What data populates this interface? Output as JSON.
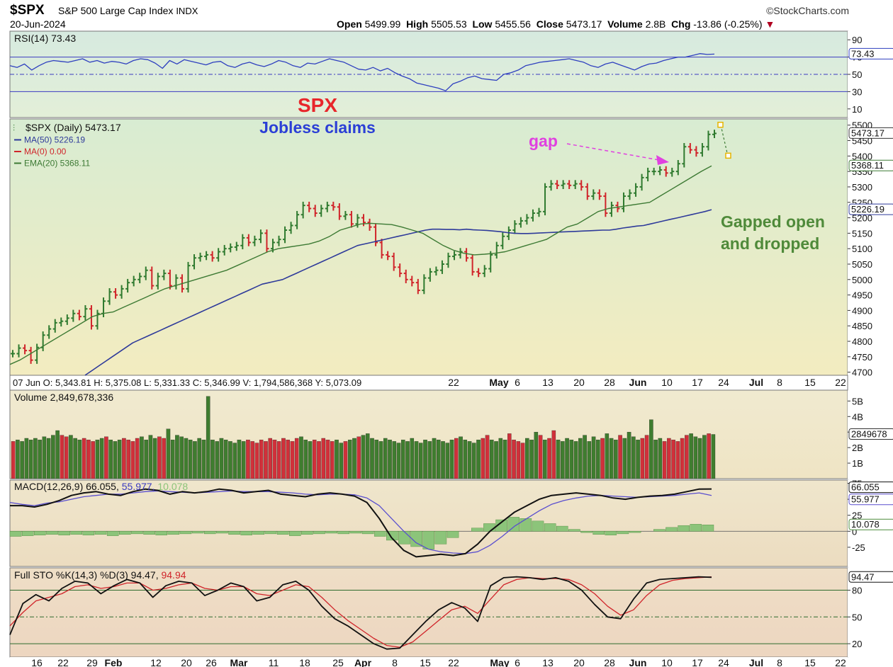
{
  "header": {
    "symbol": "$SPX",
    "name": "S&P 500 Large Cap Index",
    "exchange": "INDX",
    "date": "20-Jun-2024",
    "brand": "©StockCharts.com",
    "open_label": "Open",
    "open": "5499.99",
    "high_label": "High",
    "high": "5505.53",
    "low_label": "Low",
    "low": "5455.56",
    "close_label": "Close",
    "close": "5473.17",
    "volume_label": "Volume",
    "volume": "2.8B",
    "chg_label": "Chg",
    "chg": "-13.86 (-0.25%)"
  },
  "annotations": {
    "title": "SPX",
    "subtitle": "Jobless claims",
    "gap": "gap",
    "note_line1": "Gapped open",
    "note_line2": "and dropped",
    "colors": {
      "title": "#e8262b",
      "subtitle": "#2b3fd6",
      "gap": "#e040e0",
      "note": "#4f8a3a"
    }
  },
  "hover_readout": "07 Jun O: 5,343.81 H: 5,375.08 L: 5,331.33 C: 5,346.99 V: 1,794,586,368 Y: 5,073.09",
  "chart_data": [
    {
      "type": "line",
      "panel": "rsi",
      "legend": "RSI(14) 73.43",
      "last_value_label": "73.43",
      "ylim": [
        0,
        100
      ],
      "yticks": [
        10,
        30,
        50,
        70,
        90
      ],
      "reference_lines": [
        30,
        50,
        70
      ],
      "values": [
        60,
        58,
        62,
        55,
        60,
        64,
        66,
        65,
        64,
        66,
        68,
        64,
        66,
        63,
        65,
        64,
        62,
        66,
        68,
        67,
        63,
        57,
        66,
        62,
        67,
        65,
        63,
        61,
        64,
        65,
        60,
        58,
        62,
        64,
        61,
        59,
        62,
        66,
        64,
        60,
        58,
        63,
        62,
        65,
        68,
        66,
        64,
        60,
        56,
        55,
        58,
        54,
        57,
        52,
        48,
        45,
        40,
        38,
        36,
        34,
        31,
        39,
        42,
        46,
        48,
        45,
        44,
        43,
        50,
        52,
        55,
        60,
        62,
        64,
        65,
        66,
        67,
        68,
        66,
        64,
        60,
        58,
        62,
        64,
        61,
        58,
        55,
        59,
        62,
        63,
        66,
        68,
        70,
        70,
        72,
        74,
        73,
        73.43
      ]
    },
    {
      "type": "bar",
      "panel": "price",
      "series": [
        {
          "name": "$SPX (Daily) 5473.17",
          "close": [
            4760,
            4778,
            4770,
            4739,
            4780,
            4820,
            4840,
            4860,
            4865,
            4875,
            4890,
            4880,
            4905,
            4850,
            4890,
            4930,
            4960,
            4950,
            4970,
            4990,
            5000,
            5010,
            5030,
            4980,
            5010,
            5020,
            4980,
            5005,
            4970,
            5045,
            5070,
            5075,
            5080,
            5070,
            5090,
            5100,
            5105,
            5110,
            5135,
            5120,
            5130,
            5150,
            5100,
            5120,
            5130,
            5160,
            5175,
            5210,
            5240,
            5230,
            5215,
            5230,
            5240,
            5235,
            5205,
            5210,
            5180,
            5200,
            5185,
            5170,
            5120,
            5080,
            5075,
            5040,
            5020,
            5000,
            4990,
            4965,
            5005,
            5025,
            5030,
            5050,
            5075,
            5080,
            5090,
            5070,
            5025,
            5020,
            5035,
            5080,
            5110,
            5140,
            5160,
            5180,
            5190,
            5200,
            5215,
            5220,
            5300,
            5310,
            5305,
            5310,
            5305,
            5310,
            5300,
            5270,
            5280,
            5270,
            5215,
            5240,
            5230,
            5270,
            5280,
            5300,
            5330,
            5350,
            5350,
            5355,
            5345,
            5350,
            5375,
            5430,
            5420,
            5410,
            5430,
            5470,
            5473.17
          ]
        },
        {
          "name": "MA(50) 5226.19",
          "values": [
            4690,
            4705,
            4720,
            4735,
            4750,
            4765,
            4780,
            4795,
            4805,
            4815,
            4825,
            4835,
            4845,
            4855,
            4865,
            4875,
            4885,
            4895,
            4905,
            4915,
            4925,
            4935,
            4945,
            4955,
            4965,
            4975,
            4985,
            4990,
            4995,
            5000,
            5010,
            5020,
            5030,
            5040,
            5050,
            5060,
            5070,
            5080,
            5090,
            5100,
            5110,
            5115,
            5120,
            5125,
            5130,
            5135,
            5140,
            5145,
            5150,
            5155,
            5160,
            5163,
            5163,
            5162,
            5162,
            5161,
            5163,
            5161,
            5160,
            5159,
            5157,
            5155,
            5152,
            5150,
            5149,
            5149,
            5150,
            5151,
            5152,
            5153,
            5154,
            5155,
            5156,
            5157,
            5158,
            5159,
            5160,
            5160,
            5163,
            5167,
            5170,
            5173,
            5175,
            5180,
            5185,
            5190,
            5195,
            5200,
            5205,
            5210,
            5215,
            5220,
            5226.19
          ]
        },
        {
          "name": "MA(0) 0.00",
          "values": []
        },
        {
          "name": "EMA(20) 5368.11",
          "values": [
            4725,
            4740,
            4760,
            4780,
            4800,
            4820,
            4840,
            4860,
            4880,
            4890,
            4895,
            4910,
            4925,
            4940,
            4955,
            4970,
            4980,
            4990,
            5000,
            5010,
            5020,
            5030,
            5045,
            5060,
            5075,
            5090,
            5100,
            5105,
            5110,
            5115,
            5125,
            5140,
            5160,
            5170,
            5180,
            5182,
            5180,
            5178,
            5170,
            5160,
            5150,
            5130,
            5110,
            5095,
            5085,
            5080,
            5082,
            5085,
            5090,
            5100,
            5110,
            5120,
            5130,
            5150,
            5170,
            5180,
            5200,
            5220,
            5230,
            5235,
            5240,
            5245,
            5250,
            5270,
            5290,
            5310,
            5330,
            5350,
            5368.11
          ]
        }
      ],
      "ylim": [
        4690,
        5520
      ],
      "yticks": [
        4700,
        4750,
        4800,
        4850,
        4900,
        4950,
        5000,
        5050,
        5100,
        5150,
        5200,
        5250,
        5300,
        5350,
        5400,
        5450,
        5500
      ],
      "last_value_labels": [
        "5473.17",
        "5368.11",
        "5226.19"
      ],
      "projection": [
        5500,
        5400
      ]
    },
    {
      "type": "bar",
      "panel": "volume",
      "series": [
        {
          "name": "Volume 2,849,678,336",
          "values": [
            2.4,
            2.5,
            2.4,
            2.6,
            2.5,
            2.6,
            2.5,
            2.7,
            2.6,
            2.8,
            3.1,
            2.8,
            2.7,
            2.8,
            2.6,
            2.5,
            2.6,
            2.5,
            2.4,
            2.5,
            2.6,
            2.7,
            2.5,
            2.4,
            2.5,
            2.6,
            2.5,
            2.4,
            2.6,
            2.7,
            2.5,
            2.8,
            2.6,
            2.7,
            2.6,
            3.2,
            2.5,
            2.8,
            2.7,
            2.6,
            2.5,
            2.4,
            2.6,
            2.5,
            5.3,
            2.5,
            2.4,
            2.6,
            2.5,
            2.4,
            2.3,
            2.5,
            2.4,
            2.5,
            2.4,
            2.3,
            2.5,
            2.4,
            2.6,
            2.5,
            2.4,
            2.6,
            2.5,
            2.4,
            2.6,
            2.7,
            2.5,
            2.4,
            2.5,
            2.4,
            2.6,
            2.5,
            2.4,
            2.5,
            2.3,
            2.4,
            2.5,
            2.6,
            2.7,
            2.8,
            2.9,
            2.6,
            2.5,
            2.4,
            2.6,
            2.5,
            2.4,
            2.3,
            2.5,
            2.4,
            2.6,
            2.4,
            2.3,
            2.5,
            2.4,
            2.6,
            2.5,
            2.4,
            2.3,
            2.5,
            2.6,
            2.7,
            2.5,
            2.4,
            2.3,
            2.5,
            2.6,
            2.8,
            2.5,
            2.4,
            2.6,
            2.5,
            2.9,
            2.5,
            2.4,
            2.3,
            2.6,
            2.5,
            3.0,
            2.8,
            2.5,
            2.6,
            3.1,
            2.5,
            2.4,
            2.6,
            2.5,
            2.4,
            2.6,
            2.8,
            2.4,
            2.7,
            2.5,
            2.6,
            2.9,
            2.6,
            2.5,
            2.8,
            2.6,
            3.0,
            2.7,
            2.5,
            2.6,
            2.8,
            3.8,
            2.5,
            2.6,
            2.4,
            2.6,
            2.5,
            2.4,
            2.6,
            2.8,
            2.9,
            2.7,
            2.6,
            2.8,
            2.9,
            2.85
          ]
        }
      ],
      "ylim": [
        0,
        5.7
      ],
      "yticks_labels": [
        "1B",
        "2B",
        "3B",
        "4B",
        "5B"
      ],
      "yticks": [
        1,
        2,
        3,
        4,
        5
      ],
      "last_value_label": "2849678"
    },
    {
      "type": "line",
      "panel": "macd",
      "legend": "MACD(12,26,9) 66.055, 55.977, 10.078",
      "legend_parts": [
        "MACD(12,26,9) 66.055",
        "55.977",
        "10.078"
      ],
      "ylim": [
        -55,
        80
      ],
      "yticks": [
        -25,
        0,
        25,
        50,
        75
      ],
      "last_value_labels": [
        "66.055",
        "55.977",
        "10.078"
      ],
      "series": [
        {
          "name": "MACD",
          "values": [
            40,
            40,
            38,
            42,
            48,
            56,
            60,
            62,
            58,
            56,
            62,
            66,
            64,
            58,
            62,
            60,
            62,
            66,
            64,
            60,
            62,
            64,
            58,
            56,
            54,
            58,
            60,
            58,
            55,
            45,
            20,
            -10,
            -30,
            -40,
            -38,
            -36,
            -38,
            -35,
            -20,
            0,
            15,
            30,
            40,
            50,
            56,
            58,
            60,
            58,
            56,
            52,
            50,
            53,
            55,
            56,
            58,
            62,
            66,
            66.055
          ]
        },
        {
          "name": "Signal",
          "values": [
            45,
            42,
            40,
            44,
            46,
            50,
            54,
            56,
            58,
            58,
            60,
            62,
            63,
            62,
            61,
            60,
            61,
            62,
            63,
            62,
            62,
            62,
            61,
            60,
            58,
            57,
            58,
            58,
            57,
            52,
            40,
            20,
            0,
            -18,
            -28,
            -32,
            -34,
            -35,
            -32,
            -22,
            -8,
            8,
            20,
            32,
            42,
            48,
            52,
            55,
            56,
            55,
            54,
            53,
            54,
            55,
            56,
            58,
            60,
            55.977
          ]
        },
        {
          "name": "Histogram",
          "values": [
            -8,
            -7,
            -6,
            -5,
            -6,
            -5,
            -6,
            -5,
            -7,
            -5,
            -4,
            -5,
            -6,
            -5,
            -4,
            -3,
            -4,
            -3,
            -5,
            -6,
            -5,
            -4,
            -5,
            -7,
            -5,
            -4,
            -3,
            -4,
            -3,
            -4,
            -8,
            -14,
            -20,
            -24,
            -28,
            -20,
            -10,
            0,
            5,
            12,
            18,
            22,
            20,
            16,
            12,
            8,
            3,
            -2,
            -5,
            -6,
            -4,
            -2,
            0,
            3,
            6,
            9,
            11,
            10.078
          ]
        }
      ]
    },
    {
      "type": "line",
      "panel": "stochastic",
      "legend": "Full STO %K(14,3) %D(3) 94.47, 94.94",
      "legend_parts": [
        "Full STO %K(14,3) %D(3) 94.47",
        "94.94"
      ],
      "ylim": [
        5,
        105
      ],
      "yticks": [
        20,
        50,
        80
      ],
      "reference_lines": [
        20,
        50,
        80
      ],
      "last_value_label": "94.47",
      "series": [
        {
          "name": "%K",
          "values": [
            30,
            65,
            75,
            68,
            82,
            90,
            88,
            76,
            85,
            92,
            88,
            72,
            85,
            90,
            88,
            74,
            80,
            88,
            84,
            68,
            72,
            86,
            90,
            80,
            62,
            48,
            40,
            30,
            20,
            14,
            15,
            30,
            45,
            58,
            66,
            60,
            45,
            85,
            94,
            95,
            94,
            92,
            94,
            90,
            80,
            64,
            50,
            48,
            70,
            88,
            92,
            93,
            94,
            95,
            94.47
          ]
        },
        {
          "name": "%D",
          "values": [
            40,
            55,
            68,
            72,
            76,
            84,
            86,
            82,
            84,
            88,
            88,
            80,
            82,
            86,
            88,
            82,
            80,
            84,
            84,
            76,
            74,
            80,
            86,
            84,
            72,
            58,
            46,
            36,
            26,
            18,
            16,
            22,
            34,
            46,
            58,
            62,
            54,
            70,
            86,
            92,
            94,
            93,
            93,
            92,
            86,
            76,
            62,
            52,
            58,
            74,
            86,
            91,
            93,
            94,
            94.94
          ]
        }
      ]
    }
  ],
  "x_axis": {
    "labels_upper": [
      "22",
      "May",
      "6",
      "13",
      "20",
      "28",
      "Jun",
      "10",
      "17",
      "24",
      "Jul",
      "8",
      "15",
      "22"
    ],
    "labels_lower": [
      "16",
      "22",
      "29",
      "Feb",
      "12",
      "20",
      "26",
      "Mar",
      "11",
      "18",
      "25",
      "Apr",
      "8",
      "15",
      "22",
      "May",
      "6",
      "13",
      "20",
      "28",
      "Jun",
      "10",
      "17",
      "24",
      "Jul",
      "8",
      "15",
      "22"
    ]
  }
}
